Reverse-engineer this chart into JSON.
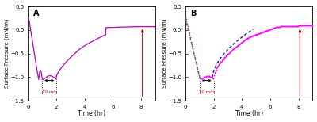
{
  "title_A": "A",
  "title_B": "B",
  "xlabel": "Time (hr)",
  "ylabel": "Surface Pressure (mN/m)",
  "xlim": [
    0,
    9
  ],
  "ylim": [
    -1.5,
    0.5
  ],
  "yticks": [
    -1.5,
    -1.0,
    -0.5,
    0.0,
    0.5
  ],
  "xticks": [
    0,
    2,
    4,
    6,
    8
  ],
  "line_color_A": "#BB00BB",
  "line_color_B_main": "#FF00FF",
  "line_color_B_fit1": "#228B22",
  "line_color_B_fit2": "#00008B",
  "arrow_color": "#8B0000",
  "annotation_color": "#DD0000",
  "bg_color": "#FFFFFF",
  "figsize": [
    4.0,
    1.54
  ],
  "dpi": 100
}
